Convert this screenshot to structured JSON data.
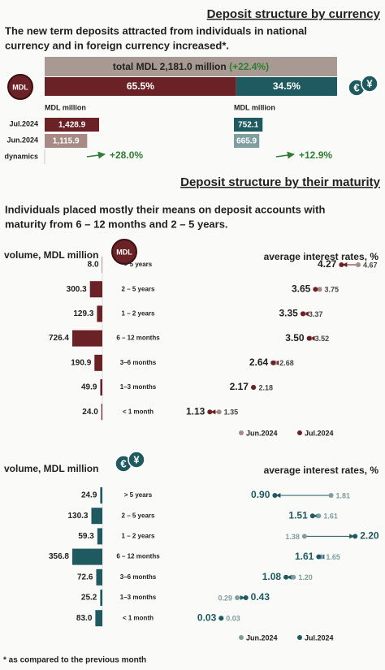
{
  "currency": {
    "title": "Deposit structure by currency",
    "subtitle_lines": [
      "The new term deposits attracted from individuals in national",
      "currency and in foreign currency increased*."
    ],
    "total_label": "total MDL 2,181.0 million",
    "total_change": "(+22.4%)",
    "mdl_icon": "MDL",
    "fx_icons": [
      "€",
      "¥"
    ],
    "shares": {
      "values": [
        65.5,
        34.5
      ],
      "value_labels": [
        "65.5%",
        "34.5%"
      ],
      "colors": [
        "#6b2226",
        "#1e5a5f"
      ]
    },
    "row_labels": [
      "Jul.2024",
      "Jun.2024",
      "dynamics"
    ],
    "panels": [
      {
        "unit": "MDL million",
        "values": [
          1428.9,
          1115.9
        ],
        "value_labels": [
          "1,428.9",
          "1,115.9"
        ],
        "colors": [
          "#6b2226",
          "#a88a85"
        ],
        "change": "+28.0%"
      },
      {
        "unit": "MDL million",
        "values": [
          752.1,
          665.9
        ],
        "value_labels": [
          "752.1",
          "665.9"
        ],
        "colors": [
          "#1e5a5f",
          "#7e9ea0"
        ],
        "change": "+12.9%"
      }
    ]
  },
  "maturity": {
    "title": "Deposit structure by their maturity",
    "text_lines": [
      "Individuals placed mostly their means on deposit accounts with",
      "maturity from 6 – 12 months and 2 – 5 years."
    ],
    "categories": [
      "> 5 years",
      "2 – 5 years",
      "1 – 2 years",
      "6 – 12 months",
      "3–6 months",
      "1–3 months",
      "< 1 month"
    ],
    "legend": [
      "Jun.2024",
      "Jul.2024"
    ],
    "panels": [
      {
        "volume_title": "volume, MDL million",
        "rates_title": "average interest rates, %",
        "icon": "MDL",
        "colors": [
          "#a88a85",
          "#6b2226"
        ],
        "volume": [
          8.0,
          300.3,
          129.3,
          726.4,
          190.9,
          49.9,
          24.0
        ],
        "volume_labels": [
          "8.0",
          "300.3",
          "129.3",
          "726.4",
          "190.9",
          "49.9",
          "24.0"
        ],
        "rate_jun": [
          4.67,
          3.75,
          3.37,
          3.52,
          2.68,
          2.18,
          1.35
        ],
        "rate_jun_labels": [
          "4.67",
          "3.75",
          "3.37",
          "3.52",
          "2.68",
          "2.18",
          "1.35"
        ],
        "rate_jul": [
          4.27,
          3.65,
          3.35,
          3.5,
          2.64,
          2.17,
          1.13
        ],
        "rate_jul_labels": [
          "4.27",
          "3.65",
          "3.35",
          "3.50",
          "2.64",
          "2.17",
          "1.13"
        ]
      },
      {
        "volume_title": "volume, MDL million",
        "rates_title": "average interest rates, %",
        "icons": [
          "€",
          "¥"
        ],
        "colors": [
          "#7e9ea0",
          "#1e5a5f"
        ],
        "volume": [
          24.9,
          130.3,
          59.3,
          356.8,
          72.6,
          25.2,
          83.0
        ],
        "volume_labels": [
          "24.9",
          "130.3",
          "59.3",
          "356.8",
          "72.6",
          "25.2",
          "83.0"
        ],
        "rate_jun": [
          1.81,
          1.61,
          1.38,
          1.65,
          1.2,
          0.29,
          0.03
        ],
        "rate_jun_labels": [
          "1.81",
          "1.61",
          "1.38",
          "1.65",
          "1.20",
          "0.29",
          "0.03"
        ],
        "rate_jul": [
          0.9,
          1.51,
          2.2,
          1.61,
          1.08,
          0.43,
          0.03
        ],
        "rate_jul_labels": [
          "0.90",
          "1.51",
          "2.20",
          "1.61",
          "1.08",
          "0.43",
          "0.03"
        ]
      }
    ]
  },
  "footnote": "* as compared to the previous month",
  "change_color": "#2e7d32"
}
